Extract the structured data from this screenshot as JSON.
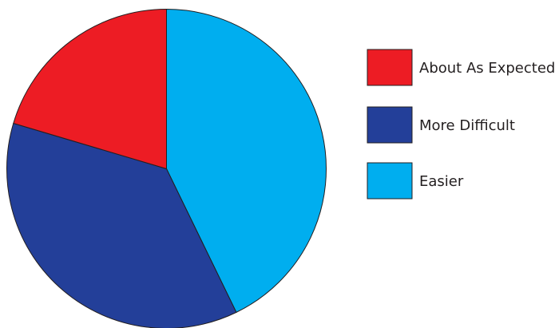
{
  "chart_data": {
    "type": "pie",
    "slices": [
      {
        "label": "Easier",
        "value": 42.8,
        "color": "#00aeef"
      },
      {
        "label": "More Difficult",
        "value": 36.8,
        "color": "#233f99"
      },
      {
        "label": "About As Expected",
        "value": 20.4,
        "color": "#ed1c24"
      }
    ],
    "legend": {
      "placement": "right",
      "entries": [
        {
          "label": "About As Expected",
          "color": "#ed1c24"
        },
        {
          "label": "More Difficult",
          "color": "#233f99"
        },
        {
          "label": "Easier",
          "color": "#00aeef"
        }
      ]
    },
    "title": "",
    "start_angle": "12 o'clock",
    "direction": "clockwise",
    "slice_outline_color": "#231f20"
  }
}
